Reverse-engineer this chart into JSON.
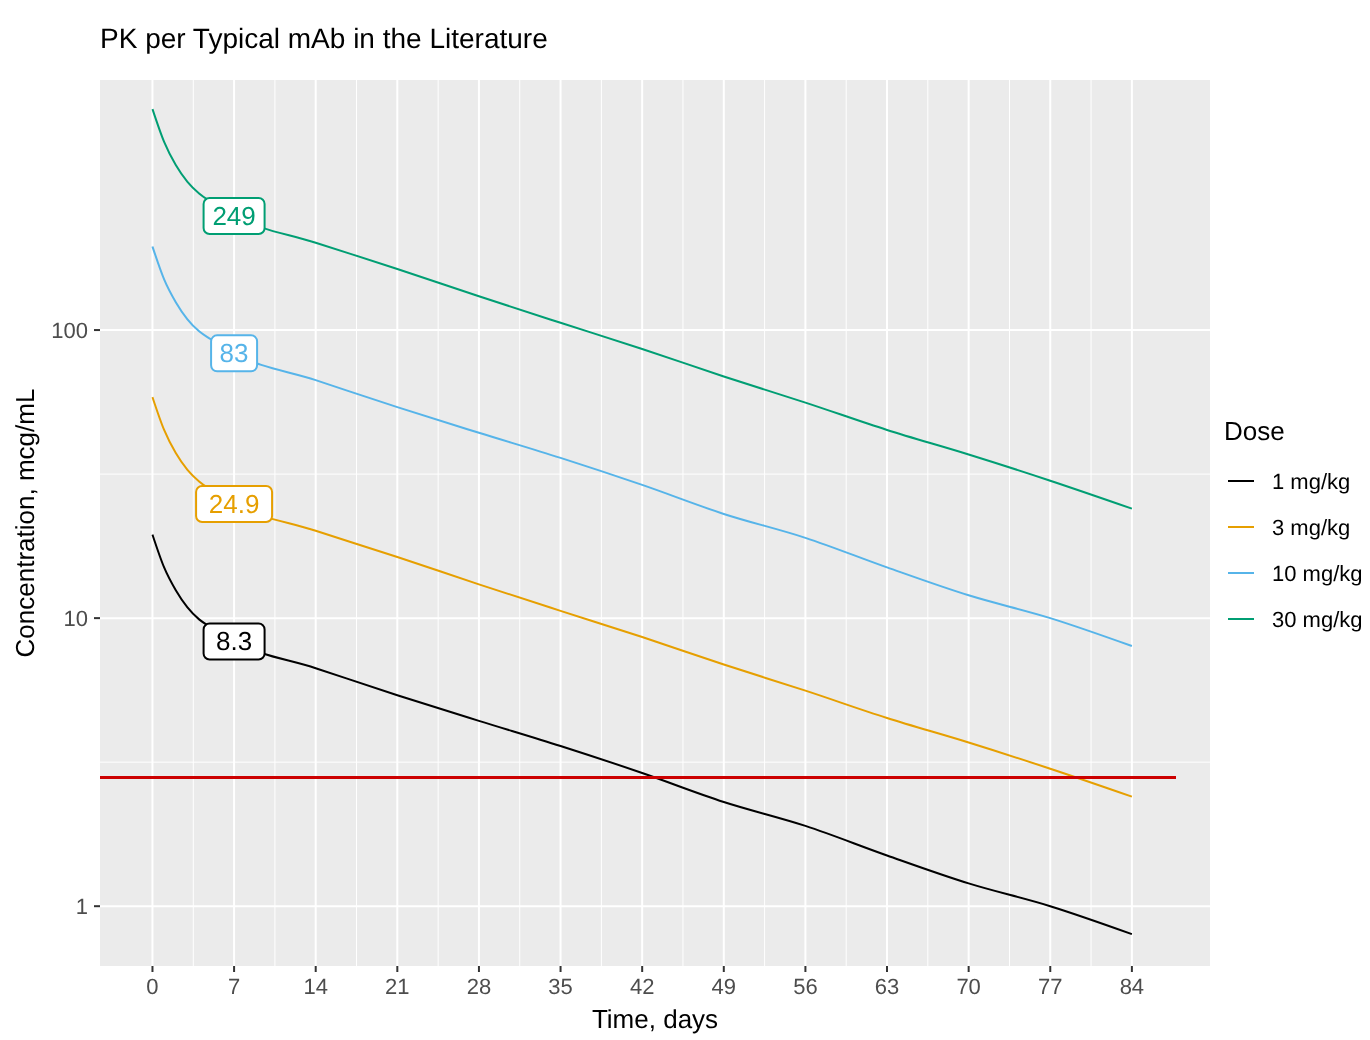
{
  "chart_data": {
    "type": "line",
    "title": "PK per Typical mAb in the Literature",
    "xlabel": "Time, days",
    "ylabel": "Concentration, mcg/mL",
    "legend_title": "Dose",
    "legend": "right",
    "grid": true,
    "log": "y",
    "line_style": "solid",
    "x": [
      0,
      1,
      2,
      3,
      4,
      5,
      7,
      14,
      21,
      28,
      35,
      42,
      49,
      56,
      63,
      70,
      77,
      84
    ],
    "xlim": [
      -4.5,
      90.7
    ],
    "xticks": [
      0,
      7,
      14,
      21,
      28,
      35,
      42,
      49,
      56,
      63,
      70,
      77,
      84
    ],
    "ylim": [
      0.62,
      738
    ],
    "yticks": [
      1,
      10,
      100
    ],
    "series": [
      {
        "name": "1 mg/kg",
        "color": "#000000",
        "values": [
          19.5,
          15,
          12.5,
          10.9,
          9.9,
          9.3,
          8.3,
          6.7,
          5.4,
          4.4,
          3.6,
          2.9,
          2.3,
          1.9,
          1.5,
          1.2,
          1.0,
          0.8
        ],
        "value_labels": [
          null,
          null,
          null,
          null,
          null,
          null,
          "8.3",
          null,
          null,
          null,
          null,
          null,
          null,
          null,
          null,
          null,
          null,
          null
        ]
      },
      {
        "name": "3 mg/kg",
        "color": "#e69f00",
        "values": [
          58.5,
          45,
          37.4,
          32.7,
          29.8,
          27.9,
          24.9,
          20.1,
          16.3,
          13.1,
          10.6,
          8.6,
          6.9,
          5.6,
          4.5,
          3.7,
          3.0,
          2.4
        ],
        "value_labels": [
          null,
          null,
          null,
          null,
          null,
          null,
          "24.9",
          null,
          null,
          null,
          null,
          null,
          null,
          null,
          null,
          null,
          null,
          null
        ]
      },
      {
        "name": "10 mg/kg",
        "color": "#56b4e9",
        "values": [
          195,
          150,
          125,
          109,
          99,
          93,
          83,
          67,
          54,
          44,
          36,
          29,
          23,
          19,
          15,
          12,
          10,
          8
        ],
        "value_labels": [
          null,
          null,
          null,
          null,
          null,
          null,
          "83",
          null,
          null,
          null,
          null,
          null,
          null,
          null,
          null,
          null,
          null,
          null
        ]
      },
      {
        "name": "30 mg/kg",
        "color": "#009e73",
        "values": [
          585,
          450,
          374,
          327,
          298,
          279,
          249,
          201,
          163,
          131,
          106,
          86,
          69,
          56,
          45,
          37,
          30,
          24
        ],
        "value_labels": [
          null,
          null,
          null,
          null,
          null,
          null,
          "249",
          null,
          null,
          null,
          null,
          null,
          null,
          null,
          null,
          null,
          null,
          null
        ]
      }
    ],
    "ref_lines": [
      {
        "axis": "y",
        "value": 2.8,
        "color": "#cc0000"
      }
    ]
  }
}
